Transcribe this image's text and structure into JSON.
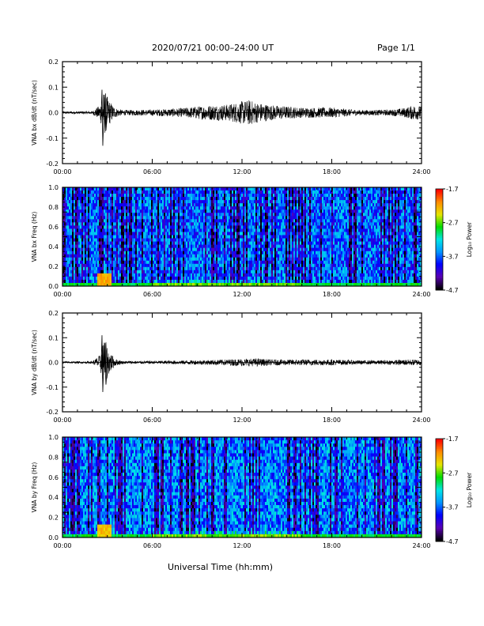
{
  "header": {
    "title": "2020/07/21  00:00–24:00 UT",
    "page": "Page 1/1"
  },
  "x_axis": {
    "label": "Universal Time (hh:mm)",
    "ticks": [
      "00:00",
      "06:00",
      "12:00",
      "18:00",
      "24:00"
    ]
  },
  "colorbar": {
    "label": "Log₁₀ Power",
    "ticks": [
      "-1.7",
      "-2.7",
      "-3.7",
      "-4.7"
    ],
    "range": [
      -4.7,
      -1.7
    ],
    "colors": [
      "#000000",
      "#5a00b4",
      "#0000ff",
      "#0096ff",
      "#00e6e6",
      "#00dc00",
      "#e6e600",
      "#ff8c00",
      "#ff0000"
    ]
  },
  "chart_data": [
    {
      "type": "line",
      "ylabel": "VNA bx dB/dt (nT/sec)",
      "xlim_hours": [
        0,
        24
      ],
      "ylim": [
        -0.2,
        0.2
      ],
      "yticks": [
        "0.2",
        "0.1",
        "0.0",
        "-0.1",
        "-0.2"
      ],
      "envelope_hours": [
        0,
        1,
        2,
        2.5,
        2.8,
        3.1,
        3.5,
        4,
        6,
        8,
        9,
        10,
        11,
        12,
        12.5,
        13,
        14,
        15,
        16,
        17,
        18,
        20,
        22,
        23,
        23.5,
        24
      ],
      "envelope_amplitude": [
        0.005,
        0.005,
        0.006,
        0.03,
        0.09,
        0.05,
        0.02,
        0.01,
        0.012,
        0.018,
        0.025,
        0.03,
        0.032,
        0.045,
        0.05,
        0.04,
        0.03,
        0.025,
        0.02,
        0.02,
        0.02,
        0.01,
        0.012,
        0.02,
        0.03,
        0.025
      ],
      "peak_values": [
        0.09,
        -0.13,
        0.06,
        -0.07
      ]
    },
    {
      "type": "heatmap",
      "ylabel": "VNA bx Freq (Hz)",
      "xlim_hours": [
        0,
        24
      ],
      "ylim": [
        0.0,
        1.0
      ],
      "yticks": [
        "1.0",
        "0.8",
        "0.6",
        "0.4",
        "0.2",
        "0.0"
      ],
      "value_range": [
        -4.7,
        -1.7
      ],
      "background_level": -3.7,
      "low_freq_band_hz": 0.04,
      "low_freq_band_level": -2.9,
      "burst_hours": 2.8,
      "burst_level": -2.2
    },
    {
      "type": "line",
      "ylabel": "VNA by dB/dt (nT/sec)",
      "xlim_hours": [
        0,
        24
      ],
      "ylim": [
        -0.2,
        0.2
      ],
      "yticks": [
        "0.2",
        "0.1",
        "0.0",
        "-0.1",
        "-0.2"
      ],
      "envelope_hours": [
        0,
        1,
        2,
        2.5,
        2.8,
        3.1,
        3.5,
        4,
        6,
        8,
        10,
        12,
        13,
        14,
        16,
        18,
        20,
        22,
        23,
        24
      ],
      "envelope_amplitude": [
        0.004,
        0.004,
        0.005,
        0.03,
        0.1,
        0.05,
        0.015,
        0.006,
        0.006,
        0.008,
        0.01,
        0.015,
        0.016,
        0.012,
        0.012,
        0.012,
        0.008,
        0.009,
        0.012,
        0.012
      ],
      "peak_values": [
        0.11,
        -0.12,
        0.08,
        -0.09
      ]
    },
    {
      "type": "heatmap",
      "ylabel": "VNA by Freq (Hz)",
      "xlim_hours": [
        0,
        24
      ],
      "ylim": [
        0.0,
        1.0
      ],
      "yticks": [
        "1.0",
        "0.8",
        "0.6",
        "0.4",
        "0.2",
        "0.0"
      ],
      "value_range": [
        -4.7,
        -1.7
      ],
      "background_level": -3.6,
      "low_freq_band_hz": 0.04,
      "low_freq_band_level": -2.9,
      "burst_hours": 2.8,
      "burst_level": -2.3
    }
  ]
}
